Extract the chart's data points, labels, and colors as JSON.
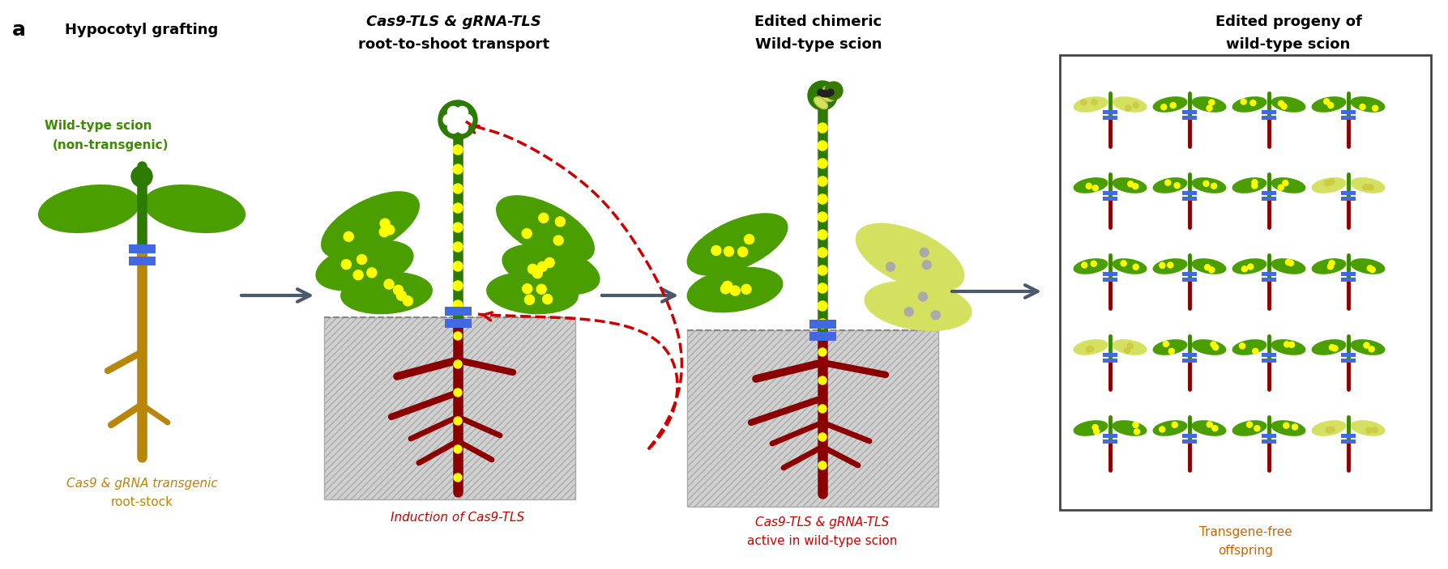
{
  "bg_color": "#ffffff",
  "panel_label": "a",
  "title1": "Hypocotyl grafting",
  "title2_line1": "Cas9-TLS & gRNA-TLS",
  "title2_line2": "root-to-shoot transport",
  "title3_line1": "Edited chimeric",
  "title3_line2": "Wild-type scion",
  "title4_line1": "Edited progeny of",
  "title4_line2": "wild-type scion",
  "label1_line1": "Cas9 & gRNA transgenic",
  "label1_line2": "root-stock",
  "label1_color": "#B8860B",
  "label2_pre": "Induction of ",
  "label2_italic": "Cas9-TLS",
  "label2_color": "#CC0000",
  "label3_line1_italic": "Cas9-TLS & gRNA-TLS",
  "label3_line2": "active in wild-type scion",
  "label3_color": "#CC0000",
  "label4_line1": "Transgene-free",
  "label4_line2": "offspring",
  "label4_color": "#CC6600",
  "scion_label": "Wild-type scion",
  "scion_label2": "(non-transgenic)",
  "scion_color": "#3d8b00",
  "green_dark": "#2d7a00",
  "green_leaf": "#4a9e00",
  "gold": "#B8860B",
  "red_root": "#8B0000",
  "blue_graft": "#4169E1",
  "soil_color": "#d0d0d0",
  "yellow_dot": "#FFFF00",
  "arrow_color": "#4a5a6a",
  "dashed_arrow_color": "#CC0000",
  "yellow_leaf": "#d4e060"
}
